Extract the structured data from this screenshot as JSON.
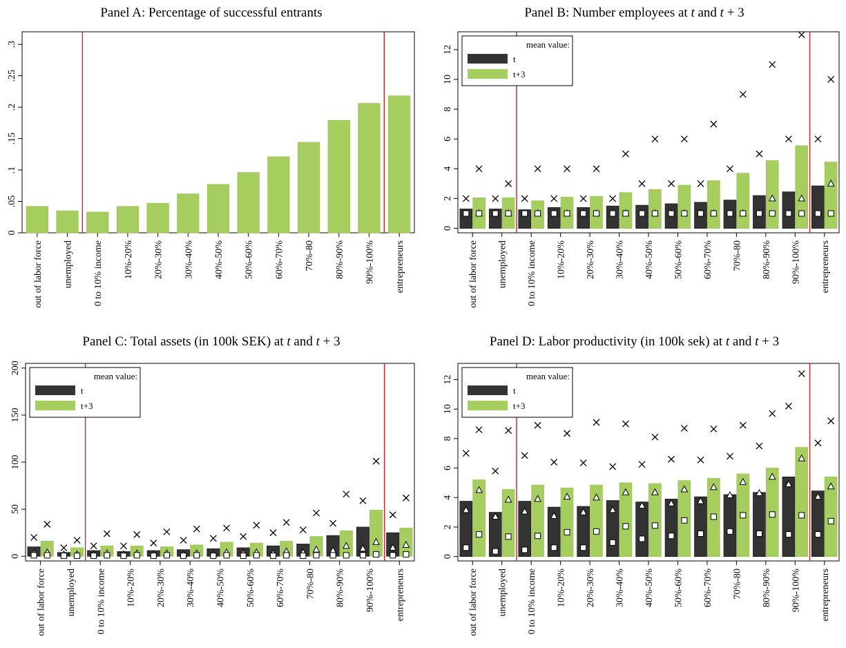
{
  "colors": {
    "t": "#333333",
    "t3": "#a6ce5e",
    "t3_stroke": "#9bc45a",
    "divider": "#d62020",
    "frame": "#000000"
  },
  "legend": {
    "title": "mean value:",
    "t": "t",
    "t3": "t+3"
  },
  "marker_meaning": {
    "cross": "upper marker",
    "triangle": "middle marker",
    "square": "lower marker"
  },
  "chart_data": [
    {
      "id": "A",
      "type": "bar",
      "title": "Panel A: Percentage of successful entrants",
      "categories": [
        "out of labor force",
        "unemployed",
        "0 to 10% income",
        "10%-20%",
        "20%-30%",
        "30%-40%",
        "40%-50%",
        "50%-60%",
        "60%-70%",
        "70%-80",
        "80%-90%",
        "90%-100%",
        "entrepreneurs"
      ],
      "ylim": [
        0,
        0.32
      ],
      "yticks": [
        0,
        0.05,
        0.1,
        0.15,
        0.2,
        0.25,
        0.3
      ],
      "ytick_labels": [
        "0",
        ".05",
        ".1",
        ".15",
        ".2",
        ".25",
        ".3"
      ],
      "dividers_after": [
        1,
        11
      ],
      "legend": false,
      "series": [
        {
          "key": "t3",
          "values": [
            0.042,
            0.035,
            0.033,
            0.042,
            0.047,
            0.062,
            0.077,
            0.096,
            0.121,
            0.144,
            0.179,
            0.206,
            0.218
          ]
        }
      ]
    },
    {
      "id": "B",
      "type": "bar",
      "title_prefix": "Panel B: Number employees at",
      "ylim": [
        -0.3,
        13.2
      ],
      "yticks": [
        0,
        2,
        4,
        6,
        8,
        10,
        12
      ],
      "ytick_labels": [
        "0",
        "2",
        "4",
        "6",
        "8",
        "10",
        "12"
      ],
      "categories": [
        "out of labor force",
        "unemployed",
        "0 to 10% income",
        "10%-20%",
        "20%-30%",
        "30%-40%",
        "40%-50%",
        "50%-60%",
        "60%-70%",
        "70%-80",
        "80%-90%",
        "90%-100%",
        "entrepreneurs"
      ],
      "dividers_after": [
        1,
        11
      ],
      "legend": true,
      "series": [
        {
          "key": "t",
          "values": [
            1.3,
            1.3,
            1.25,
            1.4,
            1.4,
            1.5,
            1.55,
            1.65,
            1.75,
            1.9,
            2.2,
            2.45,
            2.85
          ],
          "cross": [
            2,
            2,
            2,
            2,
            2,
            2,
            3,
            3,
            3,
            4,
            5,
            6,
            6
          ],
          "triangle": [
            1,
            1,
            1,
            1,
            1,
            1,
            1,
            1,
            1,
            1,
            1,
            1,
            1
          ],
          "square": [
            1,
            1,
            1,
            1,
            1,
            1,
            1,
            1,
            1,
            1,
            1,
            1,
            1
          ]
        },
        {
          "key": "t3",
          "values": [
            2.05,
            2.05,
            1.85,
            2.1,
            2.15,
            2.4,
            2.6,
            2.9,
            3.2,
            3.7,
            4.55,
            5.55,
            4.45
          ],
          "cross": [
            4,
            3,
            4,
            4,
            4,
            5,
            6,
            6,
            7,
            9,
            11,
            13,
            10
          ],
          "triangle": [
            1,
            1,
            1,
            1,
            1,
            1,
            1,
            1,
            1,
            1,
            2,
            2,
            3
          ],
          "square": [
            1,
            1,
            1,
            1,
            1,
            1,
            1,
            1,
            1,
            1,
            1,
            1,
            1
          ]
        }
      ]
    },
    {
      "id": "C",
      "type": "bar",
      "title_prefix": "Panel C: Total assets (in 100k SEK) at",
      "ylim": [
        -5,
        205
      ],
      "yticks": [
        0,
        50,
        100,
        150,
        200
      ],
      "ytick_labels": [
        "0",
        "50",
        "100",
        "150",
        "200"
      ],
      "categories": [
        "out of labor force",
        "unemployed",
        "0 to 10% income",
        "10%-20%",
        "20%-30%",
        "30%-40%",
        "40%-50%",
        "50%-60%",
        "60%-70%",
        "70%-80",
        "80%-90%",
        "90%-100%",
        "entrepreneurs"
      ],
      "dividers_after": [
        1,
        11
      ],
      "legend": true,
      "series": [
        {
          "key": "t",
          "values": [
            10,
            4,
            6,
            5,
            6,
            7,
            8,
            9,
            11,
            13,
            22,
            31,
            25
          ],
          "cross": [
            20,
            9,
            11,
            11,
            14,
            17,
            19,
            21,
            25,
            28,
            35,
            59,
            44
          ],
          "triangle": [
            3,
            2,
            2,
            2,
            2,
            2,
            2,
            3,
            3,
            4,
            6,
            8,
            9
          ],
          "square": [
            1,
            0.5,
            0.5,
            0.5,
            0.5,
            0.5,
            0.5,
            0.5,
            0.5,
            0.5,
            1,
            1,
            1
          ]
        },
        {
          "key": "t3",
          "values": [
            16,
            9,
            11,
            11,
            10,
            12,
            15,
            14,
            16,
            21,
            27,
            49,
            30
          ],
          "cross": [
            34,
            17,
            24,
            23,
            26,
            29,
            30,
            33,
            36,
            46,
            66,
            101,
            62
          ],
          "triangle": [
            4,
            2,
            3,
            3,
            3,
            3,
            4,
            4,
            5,
            7,
            11,
            15,
            12
          ],
          "square": [
            1,
            0.5,
            1,
            1,
            1,
            1,
            1,
            1,
            1,
            1,
            1,
            2,
            2
          ]
        }
      ]
    },
    {
      "id": "D",
      "type": "bar",
      "title_prefix": "Panel D: Labor productivity (in 100k sek) at",
      "ylim": [
        -0.3,
        13.1
      ],
      "yticks": [
        0,
        2,
        4,
        6,
        8,
        10,
        12
      ],
      "ytick_labels": [
        "0",
        "2",
        "4",
        "6",
        "8",
        "10",
        "12"
      ],
      "categories": [
        "out of labor force",
        "unemployed",
        "0 to 10% income",
        "10%-20%",
        "20%-30%",
        "30%-40%",
        "40%-50%",
        "50%-60%",
        "60%-70%",
        "70%-80",
        "80%-90%",
        "90%-100%",
        "entrepreneurs"
      ],
      "dividers_after": [
        1,
        11
      ],
      "legend": true,
      "series": [
        {
          "key": "t",
          "values": [
            3.75,
            3.0,
            3.75,
            3.35,
            3.4,
            3.8,
            3.7,
            3.9,
            4.05,
            4.2,
            4.35,
            5.4,
            4.45
          ],
          "cross": [
            7.0,
            5.8,
            6.85,
            6.4,
            6.35,
            6.1,
            6.25,
            6.6,
            6.55,
            6.8,
            7.5,
            10.2,
            7.7
          ],
          "triangle": [
            3.15,
            2.7,
            3.05,
            2.75,
            3.0,
            3.15,
            3.45,
            3.6,
            3.75,
            4.15,
            4.3,
            4.9,
            4.05
          ],
          "square": [
            0.6,
            0.35,
            0.45,
            0.6,
            0.6,
            0.95,
            1.2,
            1.4,
            1.55,
            1.7,
            1.55,
            1.5,
            1.5
          ]
        },
        {
          "key": "t3",
          "values": [
            5.2,
            4.55,
            4.85,
            4.65,
            4.85,
            5.0,
            4.95,
            5.15,
            5.3,
            5.6,
            6.0,
            7.4,
            5.4
          ],
          "cross": [
            8.6,
            8.55,
            8.9,
            8.35,
            9.1,
            9.0,
            8.1,
            8.7,
            8.65,
            8.9,
            9.7,
            12.4,
            9.2
          ],
          "triangle": [
            4.5,
            3.85,
            3.9,
            4.05,
            4.0,
            4.35,
            4.35,
            4.55,
            4.7,
            5.05,
            5.4,
            6.65,
            4.75
          ],
          "square": [
            1.5,
            1.35,
            1.4,
            1.65,
            1.7,
            2.05,
            2.1,
            2.45,
            2.7,
            2.8,
            2.85,
            2.8,
            2.4
          ]
        }
      ]
    }
  ]
}
